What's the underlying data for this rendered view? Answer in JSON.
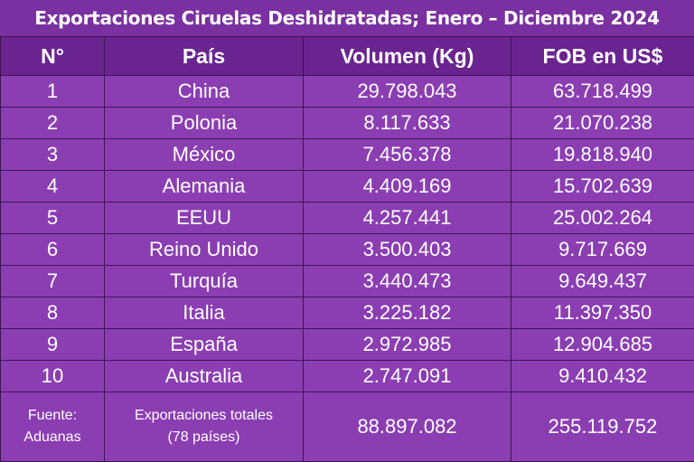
{
  "title": "Exportaciones Ciruelas Deshidratadas; Enero – Diciembre 2024",
  "headers": [
    "N°",
    "País",
    "Volumen (Kg)",
    "FOB en US$"
  ],
  "rows": [
    {
      "n": "1",
      "pais": "China",
      "volumen": "29.798.043",
      "fob": "63.718.499"
    },
    {
      "n": "2",
      "pais": "Polonia",
      "volumen": "8.117.633",
      "fob": "21.070.238"
    },
    {
      "n": "3",
      "pais": "México",
      "volumen": "7.456.378",
      "fob": "19.818.940"
    },
    {
      "n": "4",
      "pais": "Alemania",
      "volumen": "4.409.169",
      "fob": "15.702.639"
    },
    {
      "n": "5",
      "pais": "EEUU",
      "volumen": "4.257.441",
      "fob": "25.002.264"
    },
    {
      "n": "6",
      "pais": "Reino Unido",
      "volumen": "3.500.403",
      "fob": "9.717.669"
    },
    {
      "n": "7",
      "pais": "Turquía",
      "volumen": "3.440.473",
      "fob": "9.649.437"
    },
    {
      "n": "8",
      "pais": "Italia",
      "volumen": "3.225.182",
      "fob": "11.397.350"
    },
    {
      "n": "9",
      "pais": "España",
      "volumen": "2.972.985",
      "fob": "12.904.685"
    },
    {
      "n": "10",
      "pais": "Australia",
      "volumen": "2.747.091",
      "fob": "9.410.432"
    }
  ],
  "footer": {
    "source_line1": "Fuente:",
    "source_line2": "Aduanas",
    "total_label_line1": "Exportaciones totales",
    "total_label_line2": "(78 países)",
    "total_volumen": "88.897.082",
    "total_fob": "255.119.752"
  }
}
